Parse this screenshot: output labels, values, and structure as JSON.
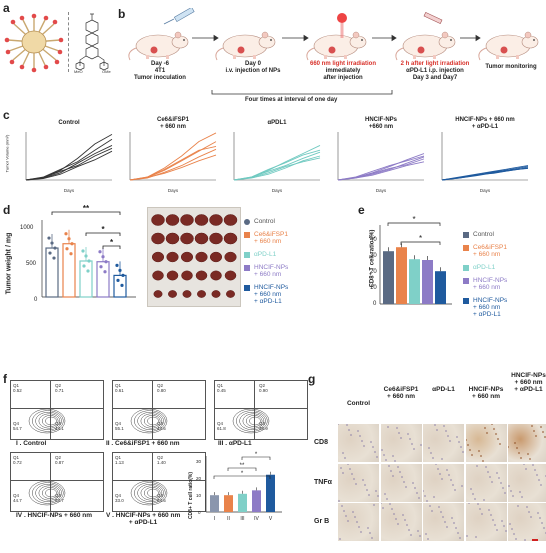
{
  "panels": {
    "a": "a",
    "b": "b",
    "c": "c",
    "d": "d",
    "e": "e",
    "f": "f",
    "g": "g"
  },
  "a": {
    "mol_left": "MeO",
    "mol_right": "OMe"
  },
  "b": {
    "step1": "Day -6\n4T1\nTumor inoculation",
    "step2": "Day 0\ni.v. injection of NPs",
    "step3_red": "660 nm light irradiation",
    "step3": "immediately\nafter injection",
    "step4_red": "2 h after light irradiation",
    "step4": "αPD-L1 i.p. injection\nDay 3 and Day7",
    "step5": "Tumor monitoring",
    "interval": "Four times at interval of one day"
  },
  "c": {
    "ylabel": "Tumor Volume (mm³)",
    "xlabel": "Days",
    "titles": [
      "Control",
      "Ce6&iFSP1\n+ 660 nm",
      "αPDL1",
      "HNCIF-NPs\n+660 nm",
      "HNCIF-NPs + 660 nm\n+ αPD-L1"
    ]
  },
  "d": {
    "ylabel": "Tumor weight / mg",
    "yticks": [
      "1000",
      "500",
      "0"
    ],
    "sig": [
      "**",
      "*",
      "*"
    ],
    "legend": [
      "Control",
      "Ce6&iFSP1\n+ 660 nm",
      "αPD-L1",
      "HNCIF-NPs\n+ 660 nm",
      "HNCIF-NPs\n+ 660 nm\n+ αPD-L1"
    ]
  },
  "e": {
    "ylabel": "CD8⁺ T cell ratio (%)",
    "yticks": [
      "40",
      "30",
      "20",
      "10",
      "0"
    ],
    "sig": [
      "*",
      "*"
    ],
    "legend": [
      "Control",
      "Ce6&iFSP1\n+ 660 nm",
      "αPD-L1",
      "HNCIF-NPs\n+ 660 nm",
      "HNCIF-NPs\n+ 660 nm\n+ αPD-L1"
    ]
  },
  "f": {
    "captions": [
      "I . Control",
      "II . Ce6&iFSP1 + 660 nm",
      "III . αPD-L1",
      "IV . HNCIF-NPs + 660 nm",
      "V . HNCIF-NPs + 660 nm\n+ αPD-L1"
    ],
    "quads": [
      [
        "Q1\n0.52",
        "Q2\n0.71",
        "Q4\n54.7",
        "Q3\n44.1"
      ],
      [
        "Q1\n0.61",
        "Q2\n0.80",
        "Q4\n55.1",
        "Q3\n43.5"
      ],
      [
        "Q1\n0.45",
        "Q2\n0.90",
        "Q4\n61.8",
        "Q3\n36.9"
      ],
      [
        "Q1\n0.72",
        "Q2\n0.87",
        "Q4\n44.7",
        "Q3\n53.7"
      ],
      [
        "Q1\n1.13",
        "Q2\n1.40",
        "Q4\n33.0",
        "Q3\n64.5"
      ]
    ],
    "bar_ylabel": "CD8+ T cell ratio(%)",
    "bar_yticks": [
      "30",
      "20",
      "10",
      "0"
    ],
    "sig": [
      "*",
      "**",
      "*"
    ]
  },
  "g": {
    "columns": [
      "Control",
      "Ce6&iFSP1\n+ 660 nm",
      "αPD-L1",
      "HNCIF-NPs\n+ 660 nm",
      "HNCIF-NPs\n+ 660 nm\n+ αPD-L1"
    ],
    "rows": [
      "CD8",
      "TNFα",
      "Gr B"
    ]
  },
  "chart_data": [
    {
      "panel": "d",
      "type": "bar",
      "categories": [
        "Control",
        "Ce6&iFSP1 + 660 nm",
        "αPD-L1",
        "HNCIF-NPs + 660 nm",
        "HNCIF-NPs + 660 nm + αPD-L1"
      ],
      "values": [
        680,
        740,
        500,
        490,
        300
      ],
      "ylim": [
        0,
        1200
      ],
      "colors": [
        "#5a6a83",
        "#e9834b",
        "#7fd0c8",
        "#8d7bc6",
        "#1f5a9e"
      ]
    },
    {
      "panel": "e",
      "type": "bar",
      "categories": [
        "Control",
        "Ce6&iFSP1 + 660 nm",
        "αPD-L1",
        "HNCIF-NPs + 660 nm",
        "HNCIF-NPs + 660 nm + αPD-L1"
      ],
      "values": [
        33,
        35.5,
        28,
        27.5,
        20.5
      ],
      "ylim": [
        0,
        50
      ],
      "colors": [
        "#5a6a83",
        "#e9834b",
        "#7fd0c8",
        "#8d7bc6",
        "#1f5a9e"
      ]
    },
    {
      "panel": "f-bar",
      "type": "bar",
      "categories": [
        "I",
        "II",
        "III",
        "IV",
        "V"
      ],
      "values": [
        9.7,
        9.7,
        10.5,
        12.5,
        21.5
      ],
      "ylim": [
        0,
        30
      ],
      "colors": [
        "#8a96ad",
        "#e9834b",
        "#7fd0c8",
        "#8d7bc6",
        "#1f5a9e"
      ]
    }
  ]
}
